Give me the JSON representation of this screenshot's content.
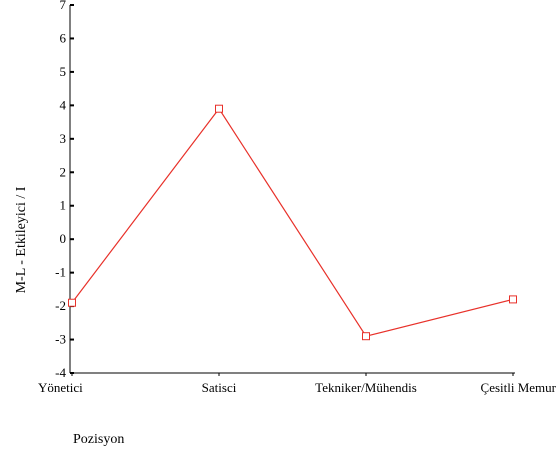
{
  "chart_data": {
    "type": "line",
    "categories": [
      "Yönetici",
      "Satisci",
      "Tekniker/Mühendis",
      "Çesitli Memur"
    ],
    "values": [
      -1.9,
      3.9,
      -2.9,
      -1.8
    ],
    "xlabel": "Pozisyon",
    "ylabel": "M-L - Etkileyici / I",
    "ylim": [
      -4,
      7
    ],
    "yticks": [
      -4,
      -3,
      -2,
      -1,
      0,
      1,
      2,
      3,
      4,
      5,
      6,
      7
    ],
    "grid": false,
    "colors": {
      "line": "#e8312a",
      "marker": "#e8312a",
      "axis": "#000000"
    },
    "marker": "square-outline"
  }
}
